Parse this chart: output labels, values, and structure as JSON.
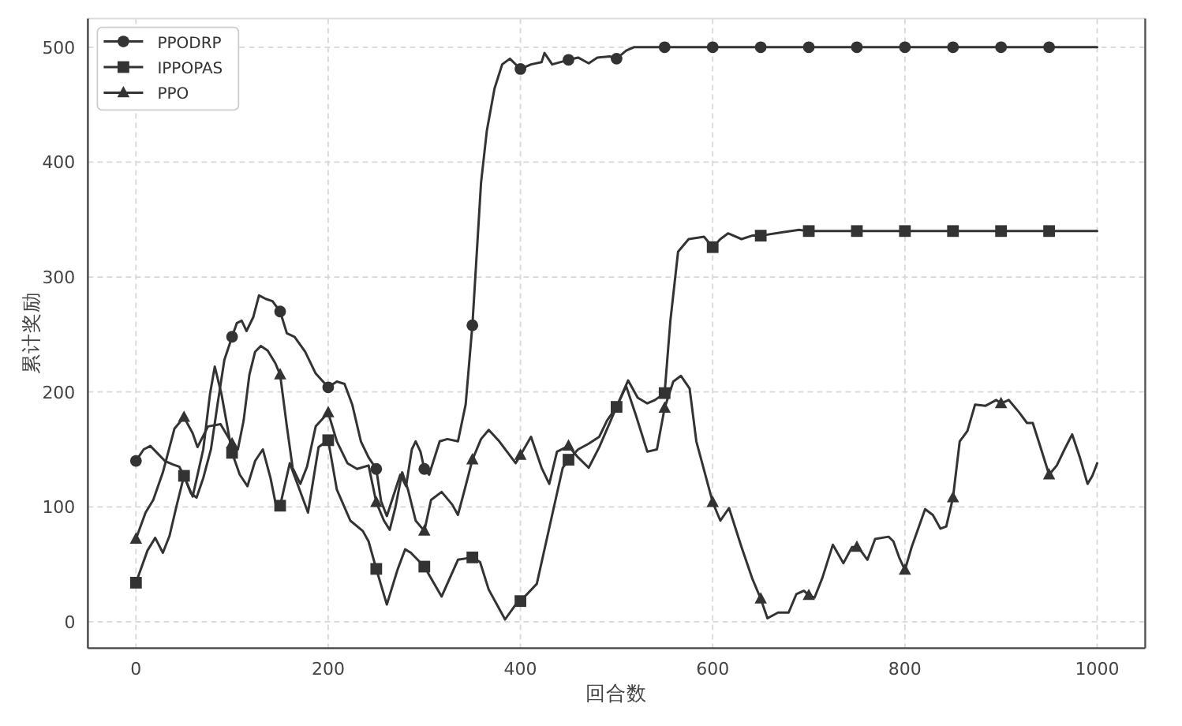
{
  "chart_data": {
    "type": "line",
    "xlabel": "回合数",
    "ylabel": "累计奖励",
    "xlim": [
      -50,
      1050
    ],
    "ylim": [
      -23,
      525
    ],
    "xticks": [
      0,
      200,
      400,
      600,
      800,
      1000
    ],
    "yticks": [
      0,
      100,
      200,
      300,
      400,
      500
    ],
    "grid": true,
    "legend": "top left",
    "line_style": "solid",
    "series": [
      {
        "name": "PPODRP",
        "color": "#333333",
        "x": [
          0,
          8,
          15,
          22,
          30,
          38,
          45,
          50,
          57,
          63,
          70,
          78,
          85,
          92,
          100,
          105,
          110,
          115,
          122,
          128,
          135,
          142,
          150,
          157,
          165,
          176,
          187,
          200,
          209,
          217,
          225,
          234,
          242,
          250,
          255,
          261,
          268,
          275,
          281,
          287,
          291,
          296,
          300,
          305,
          316,
          324,
          335,
          343,
          350,
          354,
          359,
          365,
          373,
          381,
          389,
          400,
          411,
          422,
          425,
          433,
          450,
          460,
          471,
          480,
          493,
          500,
          510,
          518,
          550,
          600,
          650,
          700,
          750,
          800,
          850,
          900,
          950,
          1000
        ],
        "values": [
          140,
          150,
          153,
          147,
          140,
          137,
          135,
          127,
          112,
          108,
          125,
          150,
          190,
          228,
          248,
          260,
          262,
          253,
          265,
          284,
          281,
          279,
          270,
          251,
          248,
          235,
          216,
          204,
          209,
          207,
          189,
          157,
          143,
          133,
          105,
          92,
          110,
          128,
          118,
          150,
          157,
          148,
          133,
          128,
          157,
          159,
          157,
          189,
          258,
          313,
          382,
          427,
          464,
          485,
          490,
          481,
          485,
          487,
          495,
          485,
          489,
          491,
          486,
          491,
          492,
          490,
          497,
          500,
          500,
          500,
          500,
          500,
          500,
          500,
          500,
          500,
          500,
          500
        ]
      },
      {
        "type": "scatter",
        "color": "#333333",
        "marker": "circle",
        "x": [
          0,
          100,
          150,
          200,
          250,
          300,
          350,
          400,
          450,
          500,
          550,
          600,
          650,
          700,
          750,
          800,
          850,
          900,
          950
        ],
        "values": [
          140,
          248,
          270,
          204,
          133,
          133,
          258,
          481,
          489,
          490,
          500,
          500,
          500,
          500,
          500,
          500,
          500,
          500,
          500
        ]
      },
      {
        "name": "IPPOPAS",
        "color": "#333333",
        "x": [
          0,
          12,
          20,
          28,
          35,
          42,
          50,
          59,
          70,
          77,
          82,
          89,
          100,
          108,
          116,
          124,
          132,
          140,
          146,
          150,
          160,
          168,
          179,
          190,
          200,
          209,
          223,
          236,
          242,
          250,
          261,
          272,
          280,
          286,
          300,
          318,
          335,
          350,
          358,
          367,
          384,
          395,
          400,
          417,
          433,
          444,
          450,
          460,
          471,
          482,
          490,
          500,
          512,
          522,
          532,
          540,
          550,
          556,
          564,
          575,
          591,
          600,
          608,
          616,
          630,
          641,
          650,
          673,
          690,
          700,
          750,
          800,
          850,
          900,
          950,
          1000
        ],
        "values": [
          34,
          62,
          73,
          60,
          75,
          100,
          127,
          109,
          150,
          198,
          222,
          198,
          147,
          128,
          118,
          140,
          150,
          125,
          100,
          101,
          138,
          120,
          95,
          152,
          158,
          115,
          88,
          79,
          70,
          46,
          15,
          45,
          63,
          60,
          48,
          22,
          54,
          56,
          52,
          28,
          2,
          15,
          18,
          33,
          93,
          134,
          141,
          150,
          155,
          161,
          175,
          187,
          210,
          195,
          190,
          193,
          199,
          262,
          322,
          333,
          335,
          326,
          333,
          338,
          333,
          336,
          336,
          339,
          341,
          340,
          340,
          340,
          340,
          340,
          340,
          340
        ]
      },
      {
        "type": "scatter",
        "color": "#333333",
        "marker": "square",
        "x": [
          0,
          50,
          100,
          150,
          200,
          250,
          300,
          350,
          400,
          450,
          500,
          550,
          600,
          650,
          700,
          750,
          800,
          850,
          900,
          950
        ],
        "values": [
          34,
          127,
          147,
          101,
          158,
          46,
          48,
          56,
          18,
          141,
          187,
          199,
          326,
          336,
          340,
          340,
          340,
          340,
          340,
          340
        ]
      },
      {
        "name": "PPO",
        "color": "#333333",
        "x": [
          0,
          10,
          18,
          28,
          40,
          50,
          59,
          64,
          75,
          88,
          100,
          106,
          112,
          118,
          124,
          130,
          137,
          145,
          150,
          157,
          163,
          171,
          178,
          187,
          200,
          209,
          220,
          230,
          242,
          250,
          258,
          264,
          270,
          277,
          283,
          291,
          300,
          307,
          318,
          329,
          335,
          342,
          350,
          359,
          367,
          378,
          395,
          400,
          411,
          422,
          430,
          438,
          450,
          460,
          471,
          482,
          500,
          510,
          520,
          532,
          542,
          550,
          559,
          567,
          576,
          583,
          592,
          600,
          608,
          617,
          630,
          641,
          650,
          657,
          668,
          679,
          687,
          695,
          700,
          706,
          714,
          725,
          736,
          745,
          750,
          753,
          761,
          769,
          783,
          788,
          794,
          800,
          807,
          821,
          829,
          837,
          843,
          850,
          857,
          865,
          873,
          884,
          895,
          900,
          908,
          919,
          927,
          933,
          941,
          950,
          958,
          966,
          974,
          982,
          990,
          995,
          1000
        ],
        "values": [
          72,
          95,
          106,
          130,
          168,
          178,
          164,
          152,
          170,
          172,
          155,
          150,
          175,
          215,
          235,
          240,
          236,
          225,
          215,
          170,
          134,
          120,
          135,
          170,
          182,
          157,
          138,
          133,
          136,
          104,
          88,
          80,
          100,
          130,
          115,
          88,
          79,
          106,
          113,
          102,
          93,
          115,
          141,
          159,
          167,
          157,
          138,
          145,
          161,
          134,
          120,
          148,
          153,
          143,
          134,
          152,
          187,
          205,
          180,
          148,
          150,
          186,
          209,
          214,
          203,
          157,
          129,
          104,
          88,
          99,
          65,
          38,
          20,
          3,
          8,
          8,
          24,
          27,
          23,
          21,
          38,
          67,
          51,
          65,
          65,
          63,
          54,
          72,
          74,
          70,
          56,
          45,
          65,
          98,
          93,
          81,
          83,
          108,
          157,
          166,
          189,
          188,
          193,
          190,
          193,
          182,
          173,
          173,
          152,
          128,
          136,
          150,
          163,
          143,
          120,
          127,
          138
        ]
      },
      {
        "type": "scatter",
        "color": "#333333",
        "marker": "triangle",
        "x": [
          0,
          50,
          100,
          150,
          200,
          250,
          300,
          350,
          400,
          450,
          550,
          600,
          650,
          700,
          750,
          800,
          850,
          900,
          950
        ],
        "values": [
          72,
          178,
          155,
          215,
          182,
          104,
          79,
          141,
          145,
          153,
          186,
          104,
          20,
          23,
          65,
          45,
          108,
          190,
          128
        ]
      }
    ]
  }
}
